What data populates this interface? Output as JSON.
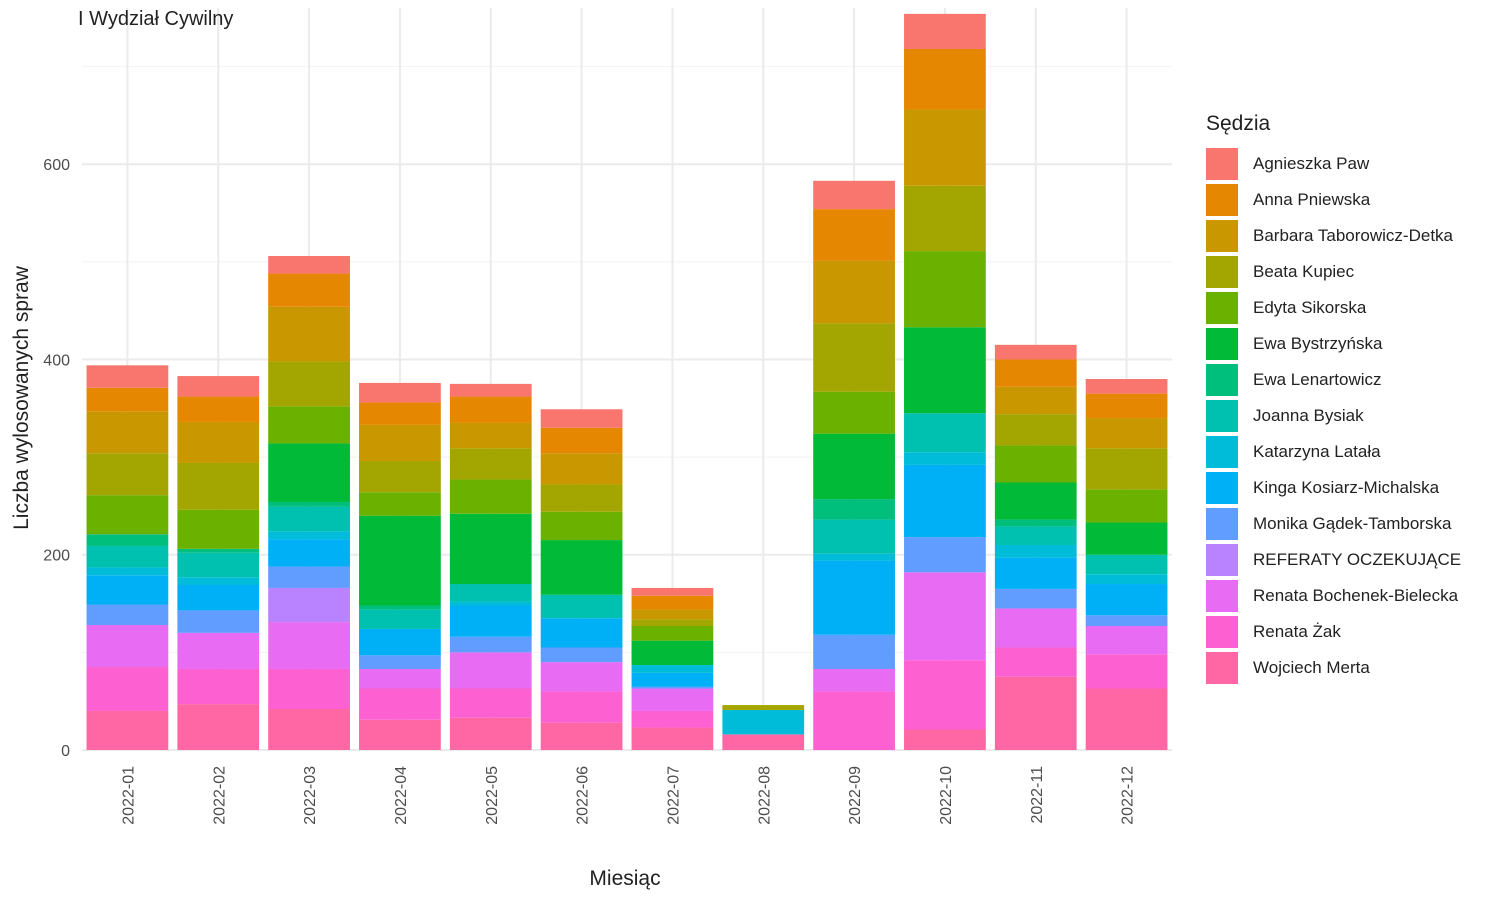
{
  "chart_data": {
    "type": "bar",
    "stacked": true,
    "title": "I Wydział Cywilny",
    "xlabel": "Miesiąc",
    "ylabel": "Liczba wylosowanych spraw",
    "ylim": [
      0,
      760
    ],
    "yticks": [
      0,
      200,
      400,
      600
    ],
    "grid": true,
    "legend_position": "right",
    "legend_title": "Sędzia",
    "categories": [
      "2022-01",
      "2022-02",
      "2022-03",
      "2022-04",
      "2022-05",
      "2022-06",
      "2022-07",
      "2022-08",
      "2022-09",
      "2022-10",
      "2022-11",
      "2022-12"
    ],
    "series": [
      {
        "name": "Agnieszka Paw",
        "color": "#F8766D",
        "values": [
          23,
          21,
          18,
          20,
          13,
          19,
          8,
          0,
          29,
          36,
          15,
          15
        ]
      },
      {
        "name": "Anna Pniewska",
        "color": "#E58700",
        "values": [
          24,
          26,
          34,
          23,
          27,
          26,
          14,
          0,
          53,
          62,
          28,
          25
        ]
      },
      {
        "name": "Barbara Taborowicz-Detka",
        "color": "#C99800",
        "values": [
          43,
          42,
          56,
          37,
          26,
          32,
          10,
          0,
          64,
          78,
          28,
          31
        ]
      },
      {
        "name": "Beata Kupiec",
        "color": "#A3A500",
        "values": [
          43,
          48,
          46,
          32,
          32,
          28,
          7,
          5,
          70,
          67,
          32,
          42
        ]
      },
      {
        "name": "Edyta Sikorska",
        "color": "#6BB100",
        "values": [
          40,
          40,
          38,
          24,
          35,
          29,
          15,
          0,
          43,
          78,
          38,
          34
        ]
      },
      {
        "name": "Ewa Bystrzyńska",
        "color": "#00BA38",
        "values": [
          0,
          0,
          60,
          92,
          72,
          56,
          25,
          0,
          67,
          88,
          38,
          33
        ]
      },
      {
        "name": "Ewa Lenartowicz",
        "color": "#00BF7D",
        "values": [
          12,
          4,
          5,
          4,
          0,
          0,
          0,
          0,
          21,
          0,
          7,
          0
        ]
      },
      {
        "name": "Joanna Bysiak",
        "color": "#00C0AF",
        "values": [
          22,
          25,
          25,
          20,
          18,
          24,
          0,
          0,
          35,
          40,
          19,
          20
        ]
      },
      {
        "name": "Katarzyna Latała",
        "color": "#00BCD8",
        "values": [
          8,
          8,
          8,
          0,
          4,
          0,
          8,
          25,
          7,
          13,
          13,
          10
        ]
      },
      {
        "name": "Kinga Kosiarz-Michalska",
        "color": "#00B0F6",
        "values": [
          30,
          26,
          28,
          27,
          32,
          30,
          14,
          0,
          76,
          74,
          32,
          32
        ]
      },
      {
        "name": "Monika Gądek-Tamborska",
        "color": "#619CFF",
        "values": [
          21,
          23,
          22,
          14,
          16,
          15,
          2,
          0,
          35,
          36,
          20,
          11
        ]
      },
      {
        "name": "REFERATY OCZEKUJĄCE",
        "color": "#B983FF",
        "values": [
          0,
          0,
          35,
          0,
          0,
          0,
          0,
          0,
          0,
          0,
          0,
          0
        ]
      },
      {
        "name": "Renata Bochenek-Bielecka",
        "color": "#E76BF3",
        "values": [
          43,
          37,
          48,
          20,
          37,
          30,
          23,
          0,
          23,
          90,
          40,
          29
        ]
      },
      {
        "name": "Renata Żak",
        "color": "#FD61D1",
        "values": [
          45,
          36,
          41,
          32,
          30,
          32,
          17,
          0,
          60,
          71,
          30,
          35
        ]
      },
      {
        "name": "Wojciech Merta",
        "color": "#FF67A4",
        "values": [
          40,
          47,
          42,
          31,
          33,
          28,
          23,
          16,
          0,
          21,
          75,
          63
        ]
      }
    ]
  }
}
